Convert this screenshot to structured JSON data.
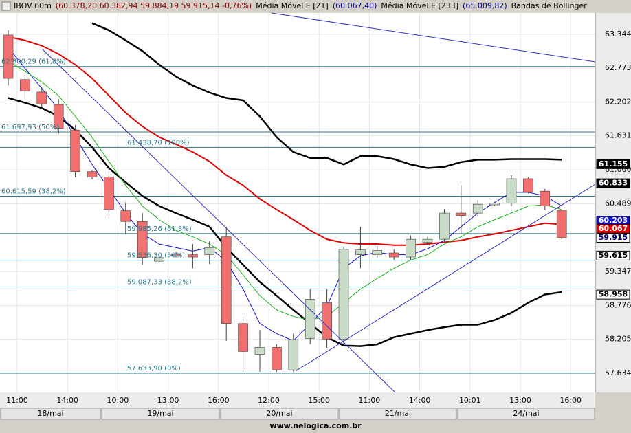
{
  "chart_data": {
    "type": "candlestick",
    "title_parts": [
      {
        "text": "IBOV 60m",
        "color": "#000000"
      },
      {
        "text": "(60.378,20  60.382,94  59.884,19  59.915,14  -0,76%)",
        "color": "#800000"
      },
      {
        "text": "Média Móvel E [21]",
        "color": "#000000"
      },
      {
        "text": "(60.067,40)",
        "color": "#000080"
      },
      {
        "text": "Média Móvel E [233]",
        "color": "#000000"
      },
      {
        "text": "(65.009,82)",
        "color": "#000080"
      },
      {
        "text": "Bandas de Bollinger",
        "color": "#000000"
      }
    ],
    "categories": [
      "11:00",
      null,
      null,
      "14:00",
      null,
      null,
      "10:00",
      null,
      null,
      "13:00",
      null,
      null,
      "16:00",
      null,
      null,
      "12:00",
      null,
      null,
      "15:00",
      null,
      null,
      "11:00",
      null,
      null,
      "14:00",
      null,
      null,
      "10:01",
      null,
      null,
      "13:00",
      null,
      null,
      "16:00"
    ],
    "days": [
      "18/mai",
      "19/mai",
      "20/mai",
      "21/mai",
      "24/mai"
    ],
    "open": [
      63330,
      62580,
      62370,
      62160,
      61730,
      61030,
      60940,
      60370,
      60190,
      59520,
      59640,
      59630,
      59630,
      59930,
      58470,
      57950,
      58070,
      57690,
      58220,
      58820,
      58210,
      59630,
      59630,
      59660,
      59590,
      59840,
      59890,
      60330,
      60330,
      60470,
      60500,
      60910,
      60700,
      60378.2
    ],
    "high": [
      63410,
      62660,
      62450,
      62250,
      61810,
      61060,
      61030,
      60510,
      60330,
      59610,
      59680,
      59810,
      59860,
      60100,
      58590,
      58360,
      58120,
      58300,
      59050,
      59050,
      59750,
      60100,
      59780,
      59720,
      59950,
      59930,
      60400,
      60800,
      60550,
      60520,
      60970,
      60940,
      60740,
      60382.94
    ],
    "low": [
      62480,
      62250,
      62080,
      61670,
      60940,
      60900,
      60240,
      59980,
      59460,
      59500,
      59580,
      59400,
      59470,
      58180,
      57660,
      57660,
      57660,
      57660,
      58120,
      58060,
      58120,
      59400,
      59580,
      59540,
      59540,
      59800,
      59840,
      59980,
      60280,
      60450,
      60450,
      60660,
      60380,
      59884.19
    ],
    "close": [
      62600,
      62390,
      62170,
      61760,
      61030,
      60940,
      60390,
      60190,
      59580,
      59580,
      59610,
      59590,
      59750,
      58470,
      58000,
      58070,
      57690,
      58200,
      58880,
      58210,
      59720,
      59710,
      59700,
      59590,
      59890,
      59890,
      60330,
      60290,
      60480,
      60500,
      60910,
      60680,
      60450,
      59915.14
    ],
    "up_color": "#c8dcc8",
    "down_color": "#f07070",
    "edge_color": "#404040",
    "series": [
      {
        "color": "#000000",
        "width": 2.5,
        "values": [
          null,
          null,
          null,
          null,
          null,
          63530,
          63410,
          63240,
          63060,
          62830,
          62630,
          62480,
          62360,
          62270,
          62230,
          61960,
          61610,
          61360,
          61260,
          61260,
          61150,
          61290,
          61290,
          61240,
          61150,
          61090,
          61110,
          61190,
          61230,
          61230,
          61240,
          61240,
          61240,
          61230
        ]
      },
      {
        "color": "#000000",
        "width": 2.5,
        "values": [
          62270,
          62190,
          62100,
          61960,
          61730,
          61440,
          61090,
          60850,
          60620,
          60450,
          60330,
          60220,
          60100,
          59750,
          59460,
          59170,
          58940,
          58700,
          58470,
          58240,
          58100,
          58090,
          58120,
          58240,
          58300,
          58360,
          58410,
          58450,
          58450,
          58530,
          58650,
          58820,
          58960,
          59000
        ]
      },
      {
        "color": "#e00000",
        "width": 2,
        "values": [
          63300,
          63240,
          63150,
          63010,
          62830,
          62600,
          62310,
          62020,
          61790,
          61610,
          61490,
          61360,
          61200,
          60970,
          60800,
          60570,
          60390,
          60220,
          60040,
          59890,
          59830,
          59810,
          59810,
          59790,
          59790,
          59810,
          59840,
          59870,
          59930,
          59980,
          60040,
          60100,
          60160,
          60140
        ]
      },
      {
        "color": "#1010d0",
        "width": 1,
        "values": [
          63120,
          62770,
          62430,
          62080,
          61610,
          61150,
          60740,
          60330,
          59980,
          59810,
          59750,
          59690,
          59750,
          59520,
          59050,
          58470,
          58300,
          58180,
          58470,
          58760,
          59400,
          59610,
          59670,
          59630,
          59630,
          59730,
          59870,
          60100,
          60330,
          60510,
          60680,
          60680,
          60620,
          60450
        ]
      },
      {
        "color": "#20b020",
        "width": 1,
        "values": [
          62890,
          62720,
          62540,
          62310,
          61960,
          61610,
          61200,
          60800,
          60450,
          60220,
          60040,
          59930,
          59810,
          59630,
          59290,
          58940,
          58700,
          58590,
          58530,
          58590,
          58820,
          59050,
          59230,
          59400,
          59540,
          59630,
          59810,
          59930,
          60100,
          60220,
          60330,
          60450,
          60470,
          60390
        ]
      }
    ],
    "levels": [
      {
        "value": 62800.29,
        "label": "62.800,29 (61,8%)"
      },
      {
        "value": 61697.93,
        "label": "61.697,93 (50%)"
      },
      {
        "value": 61438.7,
        "label": "61.438,70 (100%)"
      },
      {
        "value": 60615.59,
        "label": "60.615,59 (38,2%)"
      },
      {
        "value": 59985.26,
        "label": "59.985,26 (61,8%)"
      },
      {
        "value": 59536.3,
        "label": "59.536,30 (50%)"
      },
      {
        "value": 59087.33,
        "label": "59.087,33 (38,2%)"
      },
      {
        "value": 57633.9,
        "label": "57.633,90 (0%)"
      }
    ],
    "level_color": "#2a7a8a",
    "badges": [
      {
        "value": 61155,
        "label": "61.155",
        "bg": "#000000",
        "fg": "#ffffff"
      },
      {
        "value": 60833,
        "label": "60.833",
        "bg": "#000000",
        "fg": "#ffffff"
      },
      {
        "value": 60203,
        "label": "60.203",
        "bg": "#1010d0",
        "fg": "#ffffff"
      },
      {
        "value": 60067,
        "label": "60.067",
        "bg": "#e00000",
        "fg": "#ffffff"
      },
      {
        "value": 59915,
        "label": "59.915",
        "bg": "#ffffff",
        "fg": "#000080"
      },
      {
        "value": 59615,
        "label": "59.615",
        "bg": "#ffffff",
        "fg": "#000000"
      },
      {
        "value": 58958,
        "label": "58.958",
        "bg": "#ffffff",
        "fg": "#000000"
      }
    ],
    "ylim": [
      57310,
      63700
    ],
    "yticks": [
      {
        "value": 63344,
        "label": "63.344"
      },
      {
        "value": 62773,
        "label": "62.773"
      },
      {
        "value": 62202,
        "label": "62.202"
      },
      {
        "value": 61631,
        "label": "61.631"
      },
      {
        "value": 61060,
        "label": "61.060"
      },
      {
        "value": 60489,
        "label": "60.489"
      },
      {
        "value": 59347,
        "label": "59.347"
      },
      {
        "value": 58776,
        "label": "58.776"
      },
      {
        "value": 58205,
        "label": "58.205"
      },
      {
        "value": 57634,
        "label": "57.634"
      }
    ],
    "grid": true,
    "footer": "www.nelogica.com.br"
  }
}
